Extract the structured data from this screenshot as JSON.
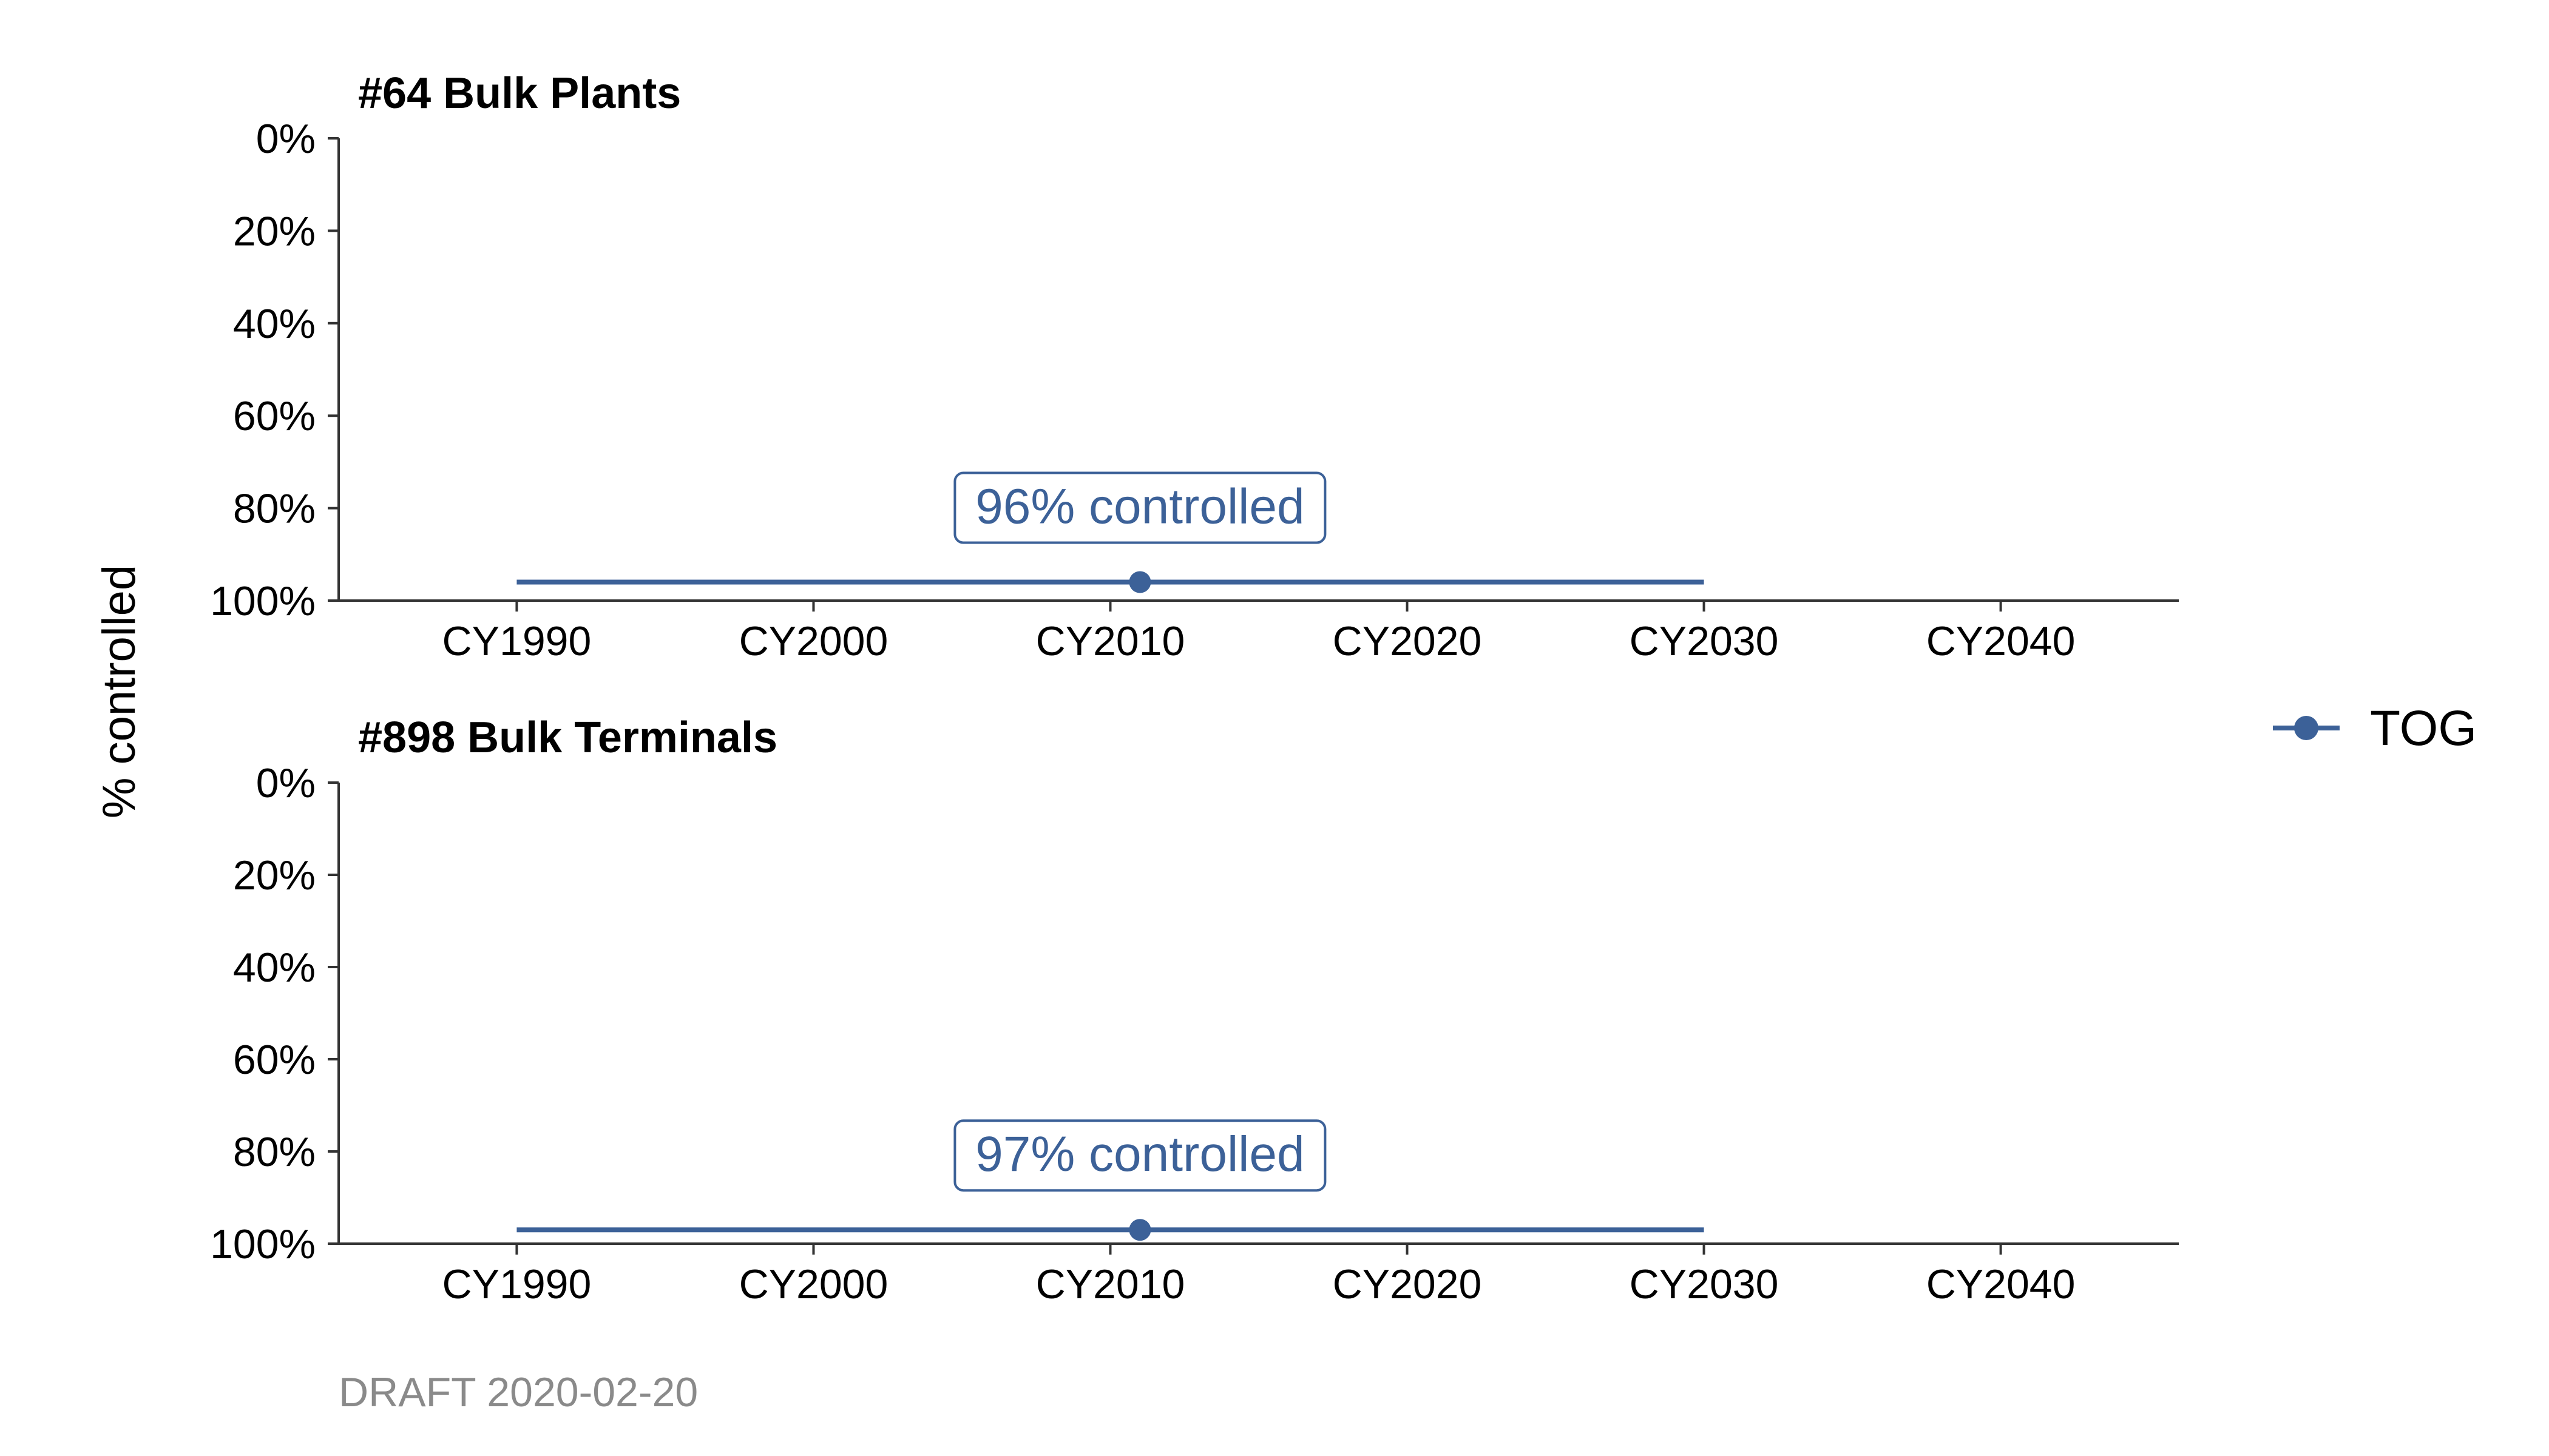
{
  "chart_data": {
    "type": "line",
    "ylabel": "% controlled",
    "y_ticks": [
      "0%",
      "20%",
      "40%",
      "60%",
      "80%",
      "100%"
    ],
    "ylim": [
      0,
      1
    ],
    "y_reversed": true,
    "x_ticks": [
      "CY1990",
      "CY2000",
      "CY2010",
      "CY2020",
      "CY2030",
      "CY2040"
    ],
    "x_tick_values": [
      1990,
      2000,
      2010,
      2020,
      2030,
      2040
    ],
    "xlim": [
      1984,
      2046
    ],
    "legend": {
      "placement": "right",
      "entries": [
        {
          "name": "TOG",
          "color": "#3C6198"
        }
      ]
    },
    "panels": [
      {
        "title": "#64 Bulk Plants",
        "series": [
          {
            "name": "TOG",
            "x": [
              1990,
              2030
            ],
            "y": [
              0.96,
              0.96
            ],
            "point": {
              "x": 2011,
              "y": 0.96
            }
          }
        ],
        "callout": "96% controlled"
      },
      {
        "title": "#898 Bulk Terminals",
        "series": [
          {
            "name": "TOG",
            "x": [
              1990,
              2030
            ],
            "y": [
              0.97,
              0.97
            ],
            "point": {
              "x": 2011,
              "y": 0.97
            }
          }
        ],
        "callout": "97% controlled"
      }
    ],
    "caption": "DRAFT 2020-02-20",
    "grid": false
  },
  "colors": {
    "series": "#3C6198",
    "axis": "#333333",
    "caption": "#8a8a8a"
  }
}
